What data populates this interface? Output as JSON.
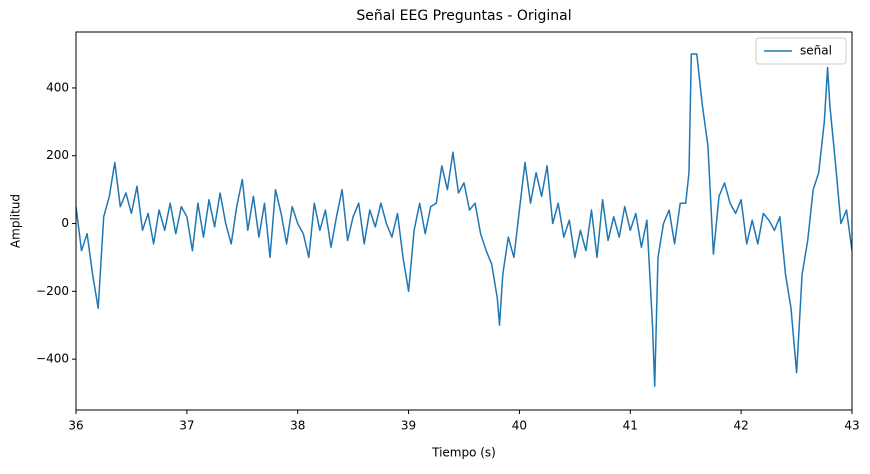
{
  "chart_data": {
    "type": "line",
    "title": "Señal EEG Preguntas - Original",
    "xlabel": "Tiempo (s)",
    "ylabel": "Amplitud",
    "x": [
      36.0,
      36.05,
      36.1,
      36.15,
      36.2,
      36.25,
      36.3,
      36.35,
      36.4,
      36.45,
      36.5,
      36.55,
      36.6,
      36.65,
      36.7,
      36.75,
      36.8,
      36.85,
      36.9,
      36.95,
      37.0,
      37.05,
      37.1,
      37.15,
      37.2,
      37.25,
      37.3,
      37.35,
      37.4,
      37.45,
      37.5,
      37.55,
      37.6,
      37.65,
      37.7,
      37.75,
      37.8,
      37.85,
      37.9,
      37.95,
      38.0,
      38.05,
      38.1,
      38.15,
      38.2,
      38.25,
      38.3,
      38.35,
      38.4,
      38.45,
      38.5,
      38.55,
      38.6,
      38.65,
      38.7,
      38.75,
      38.8,
      38.85,
      38.9,
      38.95,
      39.0,
      39.05,
      39.1,
      39.15,
      39.2,
      39.25,
      39.3,
      39.35,
      39.4,
      39.45,
      39.5,
      39.55,
      39.6,
      39.65,
      39.7,
      39.75,
      39.8,
      39.82,
      39.85,
      39.9,
      39.95,
      40.0,
      40.05,
      40.1,
      40.15,
      40.2,
      40.25,
      40.3,
      40.35,
      40.4,
      40.45,
      40.5,
      40.55,
      40.6,
      40.65,
      40.7,
      40.75,
      40.8,
      40.85,
      40.9,
      40.95,
      41.0,
      41.05,
      41.1,
      41.15,
      41.2,
      41.22,
      41.25,
      41.3,
      41.35,
      41.4,
      41.45,
      41.5,
      41.53,
      41.55,
      41.6,
      41.65,
      41.7,
      41.75,
      41.8,
      41.85,
      41.9,
      41.95,
      42.0,
      42.05,
      42.1,
      42.15,
      42.2,
      42.25,
      42.3,
      42.35,
      42.4,
      42.45,
      42.5,
      42.55,
      42.6,
      42.65,
      42.7,
      42.75,
      42.78,
      42.8,
      42.85,
      42.9,
      42.95,
      43.0
    ],
    "series": [
      {
        "name": "señal",
        "color": "#1f77b4",
        "values": [
          50,
          -80,
          -30,
          -150,
          -250,
          20,
          80,
          180,
          50,
          90,
          30,
          110,
          -20,
          30,
          -60,
          40,
          -20,
          60,
          -30,
          50,
          20,
          -80,
          60,
          -40,
          70,
          -10,
          90,
          0,
          -60,
          50,
          130,
          -20,
          80,
          -40,
          60,
          -100,
          100,
          30,
          -60,
          50,
          0,
          -30,
          -100,
          60,
          -20,
          40,
          -70,
          20,
          100,
          -50,
          20,
          60,
          -60,
          40,
          -10,
          60,
          0,
          -40,
          30,
          -100,
          -200,
          -20,
          60,
          -30,
          50,
          60,
          170,
          100,
          210,
          90,
          120,
          40,
          60,
          -30,
          -80,
          -120,
          -220,
          -300,
          -150,
          -40,
          -100,
          40,
          180,
          60,
          150,
          80,
          170,
          0,
          60,
          -40,
          10,
          -100,
          -20,
          -80,
          40,
          -100,
          70,
          -50,
          20,
          -40,
          50,
          -20,
          30,
          -70,
          10,
          -300,
          -480,
          -100,
          0,
          40,
          -60,
          60,
          60,
          150,
          500,
          500,
          350,
          230,
          -90,
          80,
          120,
          60,
          30,
          70,
          -60,
          10,
          -60,
          30,
          10,
          -20,
          20,
          -150,
          -250,
          -440,
          -150,
          -50,
          100,
          150,
          300,
          460,
          350,
          180,
          0,
          40,
          -80
        ]
      }
    ],
    "xlim": [
      36,
      43
    ],
    "ylim": [
      -550,
      565
    ],
    "xticks": [
      36,
      37,
      38,
      39,
      40,
      41,
      42,
      43
    ],
    "yticks": [
      {
        "value": -400,
        "label": "−400"
      },
      {
        "value": -200,
        "label": "−200"
      },
      0,
      200,
      400
    ],
    "grid": false,
    "legend": "upper right"
  }
}
